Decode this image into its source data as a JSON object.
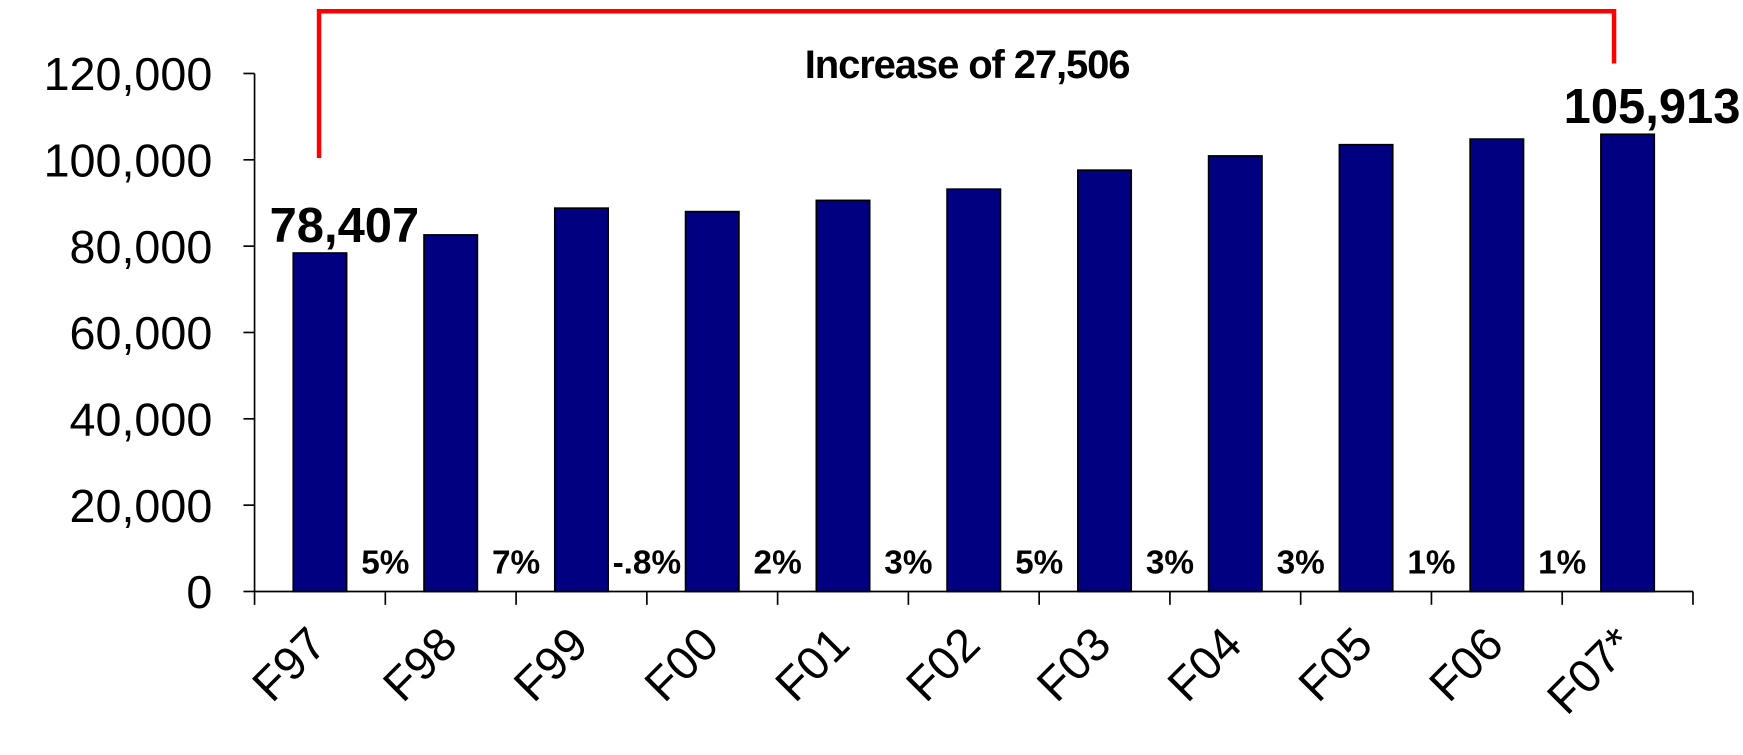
{
  "chart_data": {
    "type": "bar",
    "categories": [
      "F97",
      "F98",
      "F99",
      "F00",
      "F01",
      "F02",
      "F03",
      "F04",
      "F05",
      "F06",
      "F07*"
    ],
    "values": [
      78407,
      82600,
      88800,
      88000,
      90600,
      93200,
      97600,
      100900,
      103500,
      104800,
      105913
    ],
    "value_labels": [
      "78,407",
      null,
      null,
      null,
      null,
      null,
      null,
      null,
      null,
      null,
      "105,913"
    ],
    "growth_labels": [
      "5%",
      "7%",
      "-.8%",
      "2%",
      "3%",
      "5%",
      "3%",
      "3%",
      "1%",
      "1%"
    ],
    "annotation": "Increase of 27,506",
    "color": "#000080",
    "ylim": [
      0,
      120000
    ],
    "yticks": [
      0,
      {
        "value": 20000,
        "label": "20,000"
      },
      {
        "value": 40000,
        "label": "40,000"
      },
      {
        "value": 60000,
        "label": "60,000"
      },
      {
        "value": 80000,
        "label": "80,000"
      },
      {
        "value": 100000,
        "label": "100,000"
      },
      {
        "value": 120000,
        "label": "120,000"
      }
    ]
  }
}
